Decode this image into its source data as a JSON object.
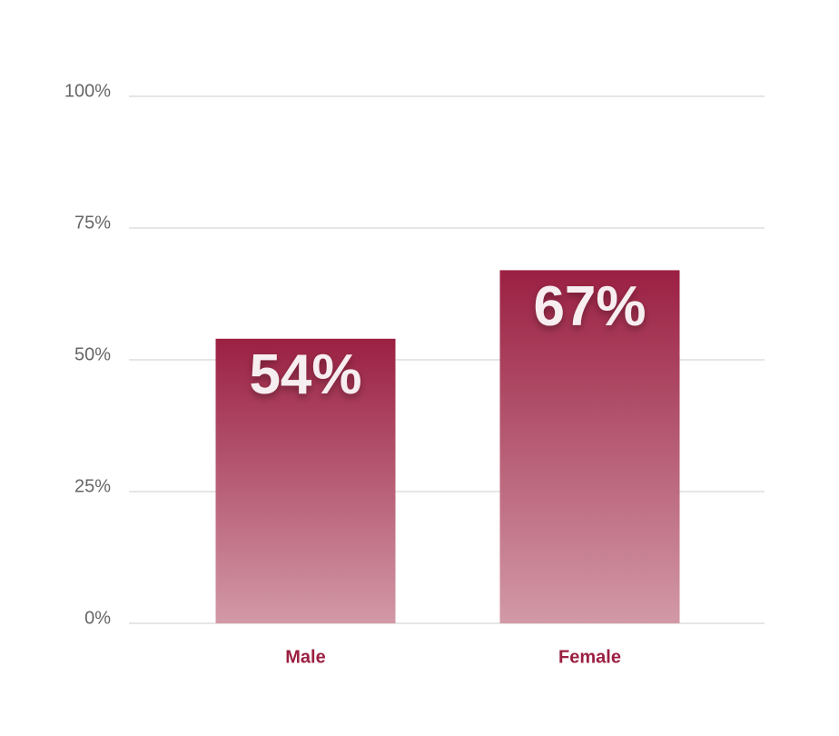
{
  "chart_data": {
    "type": "bar",
    "categories": [
      "Male",
      "Female"
    ],
    "values": [
      54,
      67
    ],
    "value_labels": [
      "54%",
      "67%"
    ],
    "color": "#9b2042",
    "ylim": [
      0,
      100
    ],
    "yticks": [
      {
        "value": 0,
        "label": "0%"
      },
      {
        "value": 25,
        "label": "25%"
      },
      {
        "value": 50,
        "label": "50%"
      },
      {
        "value": 75,
        "label": "75%"
      },
      {
        "value": 100,
        "label": "100%"
      }
    ],
    "grid": true
  }
}
